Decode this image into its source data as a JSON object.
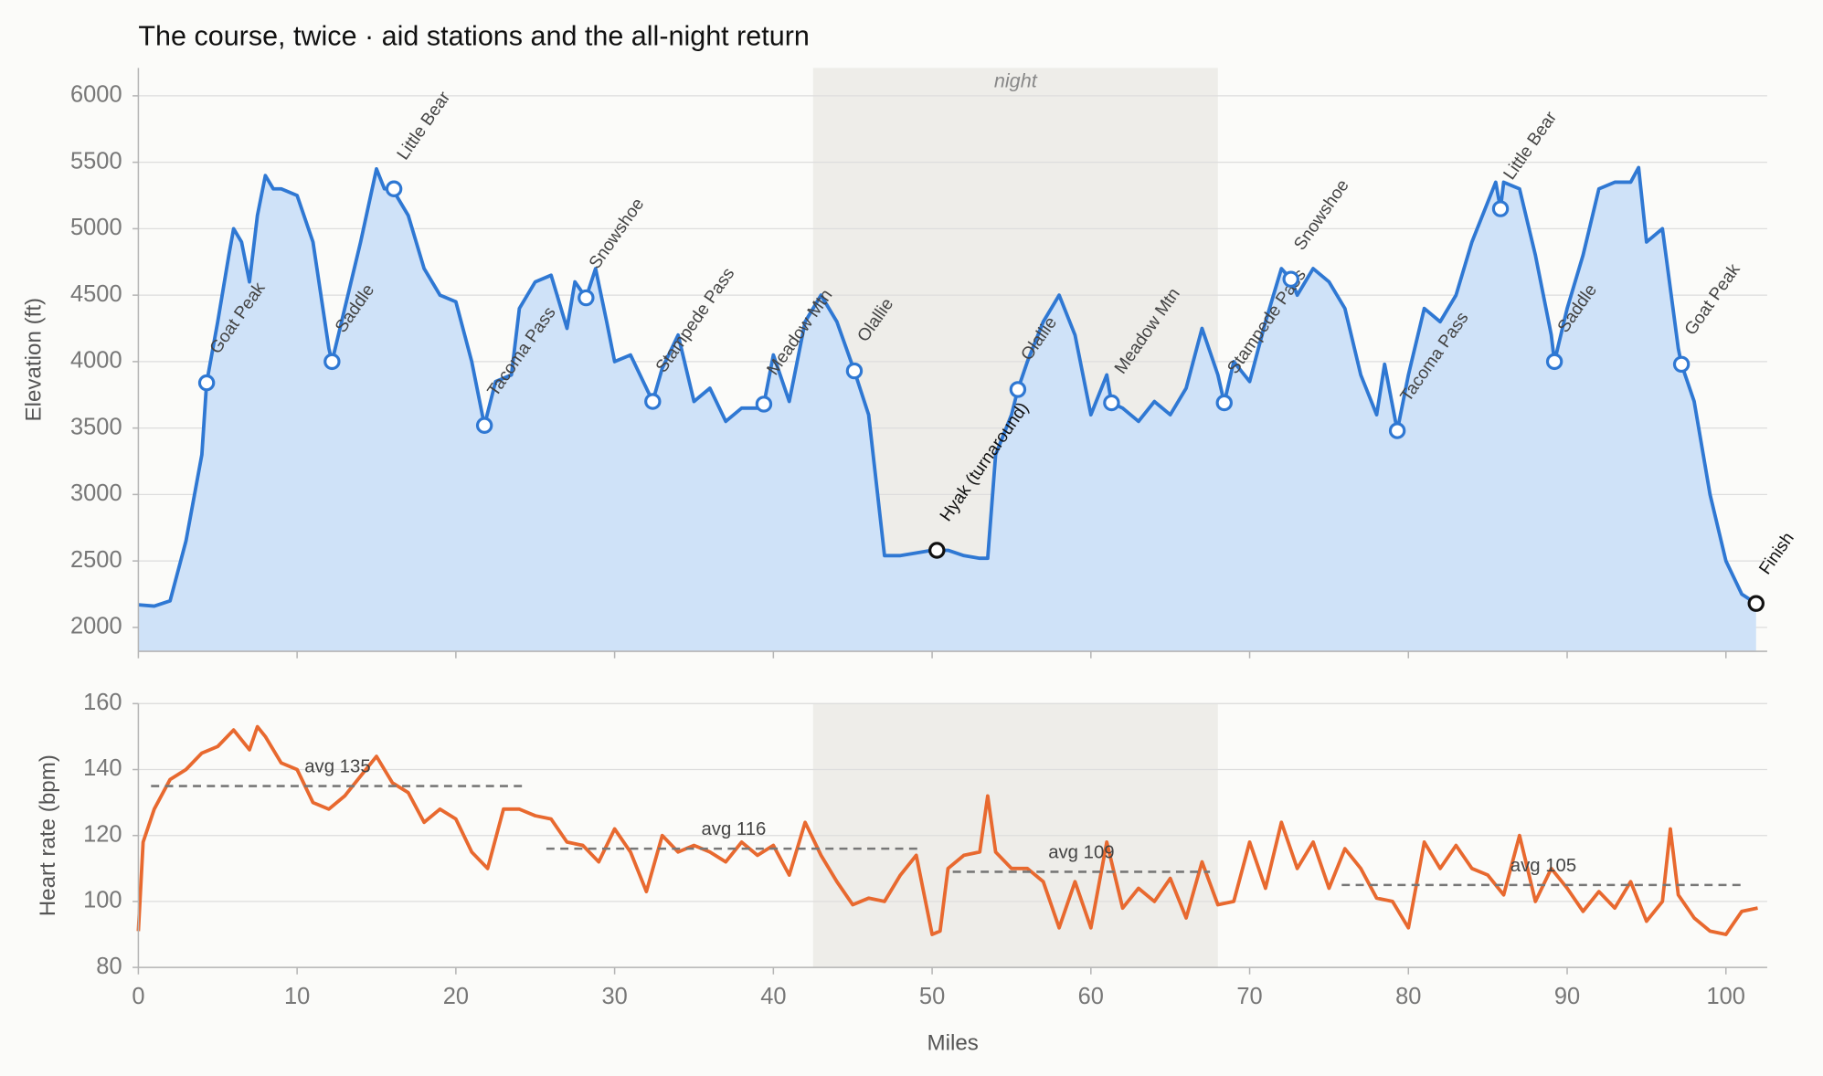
{
  "chart_data": [
    {
      "type": "line",
      "title": "The course, twice · aid stations and the all-night return",
      "ylabel": "Elevation (ft)",
      "xlim": [
        0,
        102.6
      ],
      "xticks": [
        0,
        10,
        20,
        30,
        40,
        50,
        60,
        70,
        80,
        90,
        100
      ],
      "ylim": [
        1820,
        6210
      ],
      "yticks": [
        2000,
        2500,
        3000,
        3500,
        4000,
        4500,
        5000,
        5500,
        6000
      ],
      "grid": true,
      "color": "#2f78d3",
      "fill": "#cfe2f8",
      "bands": [
        {
          "x0": 42.5,
          "x1": 68,
          "label": "night",
          "color": "#eeede9"
        }
      ],
      "x": [
        0,
        1,
        2,
        3,
        4,
        4.3,
        5,
        5.7,
        6,
        6.5,
        7,
        7.5,
        8,
        8.5,
        9,
        10,
        11,
        12,
        12.2,
        13,
        14,
        15,
        15.5,
        16,
        17,
        18,
        19,
        20,
        21,
        21.8,
        22.5,
        23.5,
        24,
        25,
        26,
        27,
        27.5,
        28.2,
        28.8,
        29.5,
        30,
        31,
        32,
        32.4,
        33,
        34,
        35,
        36,
        37,
        38,
        39,
        39.4,
        40,
        41,
        42,
        43,
        44,
        45.1,
        46,
        47,
        48,
        49,
        50,
        51,
        52,
        53,
        53.5,
        54,
        55,
        55.4,
        56,
        57,
        58,
        59,
        60,
        61,
        61.3,
        62,
        63,
        64,
        65,
        66,
        67,
        68,
        68.4,
        69,
        70,
        71,
        72,
        72.6,
        73,
        74,
        75,
        76,
        77,
        78,
        78.5,
        79.3,
        80,
        81,
        82,
        83,
        84,
        85,
        85.5,
        85.8,
        86,
        87,
        88,
        89,
        89.2,
        90,
        91,
        92,
        93,
        94,
        94.5,
        95,
        96,
        97,
        97.2,
        98,
        99,
        100,
        101,
        101.9
      ],
      "values": [
        2170,
        2160,
        2200,
        2650,
        3300,
        3840,
        4300,
        4800,
        5000,
        4900,
        4600,
        5100,
        5400,
        5300,
        5300,
        5250,
        4900,
        4100,
        4000,
        4400,
        4900,
        5450,
        5300,
        5300,
        5100,
        4700,
        4500,
        4450,
        4000,
        3520,
        3850,
        3900,
        4400,
        4600,
        4650,
        4250,
        4600,
        4480,
        4700,
        4300,
        4000,
        4050,
        3800,
        3700,
        3950,
        4200,
        3700,
        3800,
        3550,
        3650,
        3650,
        3680,
        4050,
        3700,
        4300,
        4500,
        4300,
        3930,
        3600,
        2540,
        2540,
        2560,
        2580,
        2580,
        2540,
        2520,
        2520,
        3300,
        3600,
        3790,
        4000,
        4300,
        4500,
        4200,
        3600,
        3900,
        3690,
        3650,
        3550,
        3700,
        3600,
        3800,
        4250,
        3900,
        3690,
        4000,
        3850,
        4300,
        4700,
        4620,
        4500,
        4700,
        4600,
        4400,
        3900,
        3600,
        3980,
        3480,
        3900,
        4400,
        4300,
        4500,
        4900,
        5200,
        5350,
        5150,
        5350,
        5300,
        4800,
        4200,
        4000,
        4400,
        4800,
        5300,
        5350,
        5350,
        5460,
        4900,
        5000,
        4100,
        3980,
        3700,
        3000,
        2500,
        2250,
        2180
      ],
      "stations": [
        {
          "name": "Goat Peak",
          "x": 4.3,
          "elevation": 3840,
          "color": "#2f78d3"
        },
        {
          "name": "Saddle",
          "x": 12.2,
          "elevation": 4000,
          "color": "#2f78d3"
        },
        {
          "name": "Little Bear",
          "x": 16.1,
          "elevation": 5300,
          "color": "#2f78d3"
        },
        {
          "name": "Tacoma Pass",
          "x": 21.8,
          "elevation": 3520,
          "color": "#2f78d3"
        },
        {
          "name": "Snowshoe",
          "x": 28.2,
          "elevation": 4480,
          "color": "#2f78d3"
        },
        {
          "name": "Stampede Pass",
          "x": 32.4,
          "elevation": 3700,
          "color": "#2f78d3"
        },
        {
          "name": "Meadow Mtn",
          "x": 39.4,
          "elevation": 3680,
          "color": "#2f78d3"
        },
        {
          "name": "Olallie",
          "x": 45.1,
          "elevation": 3930,
          "color": "#2f78d3"
        },
        {
          "name": "Hyak (turnaround)",
          "x": 50.3,
          "elevation": 2580,
          "color": "#111111"
        },
        {
          "name": "Olallie",
          "x": 55.4,
          "elevation": 3790,
          "color": "#2f78d3"
        },
        {
          "name": "Meadow Mtn",
          "x": 61.3,
          "elevation": 3690,
          "color": "#2f78d3"
        },
        {
          "name": "Stampede Pass",
          "x": 68.4,
          "elevation": 3690,
          "color": "#2f78d3"
        },
        {
          "name": "Snowshoe",
          "x": 72.6,
          "elevation": 4620,
          "color": "#2f78d3"
        },
        {
          "name": "Tacoma Pass",
          "x": 79.3,
          "elevation": 3480,
          "color": "#2f78d3"
        },
        {
          "name": "Little Bear",
          "x": 85.8,
          "elevation": 5150,
          "color": "#2f78d3"
        },
        {
          "name": "Saddle",
          "x": 89.2,
          "elevation": 4000,
          "color": "#2f78d3"
        },
        {
          "name": "Goat Peak",
          "x": 97.2,
          "elevation": 3980,
          "color": "#2f78d3"
        },
        {
          "name": "Finish",
          "x": 101.9,
          "elevation": 2180,
          "color": "#111111"
        }
      ]
    },
    {
      "type": "line",
      "xlabel": "Miles",
      "ylabel": "Heart rate (bpm)",
      "xlim": [
        0,
        102.6
      ],
      "xticks": [
        0,
        10,
        20,
        30,
        40,
        50,
        60,
        70,
        80,
        90,
        100
      ],
      "ylim": [
        80,
        160
      ],
      "yticks": [
        80,
        100,
        120,
        140,
        160
      ],
      "grid": true,
      "color": "#e8692f",
      "bands": [
        {
          "x0": 42.5,
          "x1": 68,
          "color": "#eeede9"
        }
      ],
      "x": [
        0,
        0.3,
        1,
        2,
        3,
        4,
        5,
        6,
        7,
        7.5,
        8,
        9,
        10,
        11,
        12,
        13,
        14,
        15,
        16,
        17,
        18,
        19,
        20,
        21,
        22,
        23,
        24,
        25,
        26,
        27,
        28,
        29,
        30,
        31,
        32,
        33,
        34,
        35,
        36,
        37,
        38,
        39,
        40,
        41,
        42,
        43,
        44,
        45,
        46,
        47,
        48,
        49,
        50,
        50.5,
        51,
        52,
        53,
        53.5,
        54,
        55,
        56,
        57,
        58,
        59,
        60,
        61,
        62,
        63,
        64,
        65,
        66,
        67,
        68,
        69,
        70,
        71,
        72,
        73,
        74,
        75,
        76,
        77,
        78,
        79,
        80,
        81,
        82,
        83,
        84,
        85,
        86,
        87,
        88,
        89,
        90,
        91,
        92,
        93,
        94,
        95,
        96,
        96.5,
        97,
        98,
        99,
        100,
        101,
        102
      ],
      "values": [
        91,
        118,
        128,
        137,
        140,
        145,
        147,
        152,
        146,
        153,
        150,
        142,
        140,
        130,
        128,
        132,
        138,
        144,
        136,
        133,
        124,
        128,
        125,
        115,
        110,
        128,
        128,
        126,
        125,
        118,
        117,
        112,
        122,
        115,
        103,
        120,
        115,
        117,
        115,
        112,
        118,
        114,
        117,
        108,
        124,
        114,
        106,
        99,
        101,
        100,
        108,
        114,
        90,
        91,
        110,
        114,
        115,
        132,
        115,
        110,
        110,
        106,
        92,
        106,
        92,
        118,
        98,
        104,
        100,
        107,
        95,
        112,
        99,
        100,
        118,
        104,
        124,
        110,
        118,
        104,
        116,
        110,
        101,
        100,
        92,
        118,
        110,
        117,
        110,
        108,
        102,
        120,
        100,
        110,
        104,
        97,
        103,
        98,
        106,
        94,
        100,
        122,
        102,
        95,
        91,
        90,
        97,
        98
      ],
      "averages": [
        {
          "x0": 0.8,
          "x1": 24.3,
          "value": 135,
          "label": "avg 135"
        },
        {
          "x0": 25.7,
          "x1": 49.3,
          "value": 116,
          "label": "avg 116"
        },
        {
          "x0": 51.3,
          "x1": 67.5,
          "value": 109,
          "label": "avg 109"
        },
        {
          "x0": 75.8,
          "x1": 101.2,
          "value": 105,
          "label": "avg 105"
        }
      ]
    }
  ]
}
